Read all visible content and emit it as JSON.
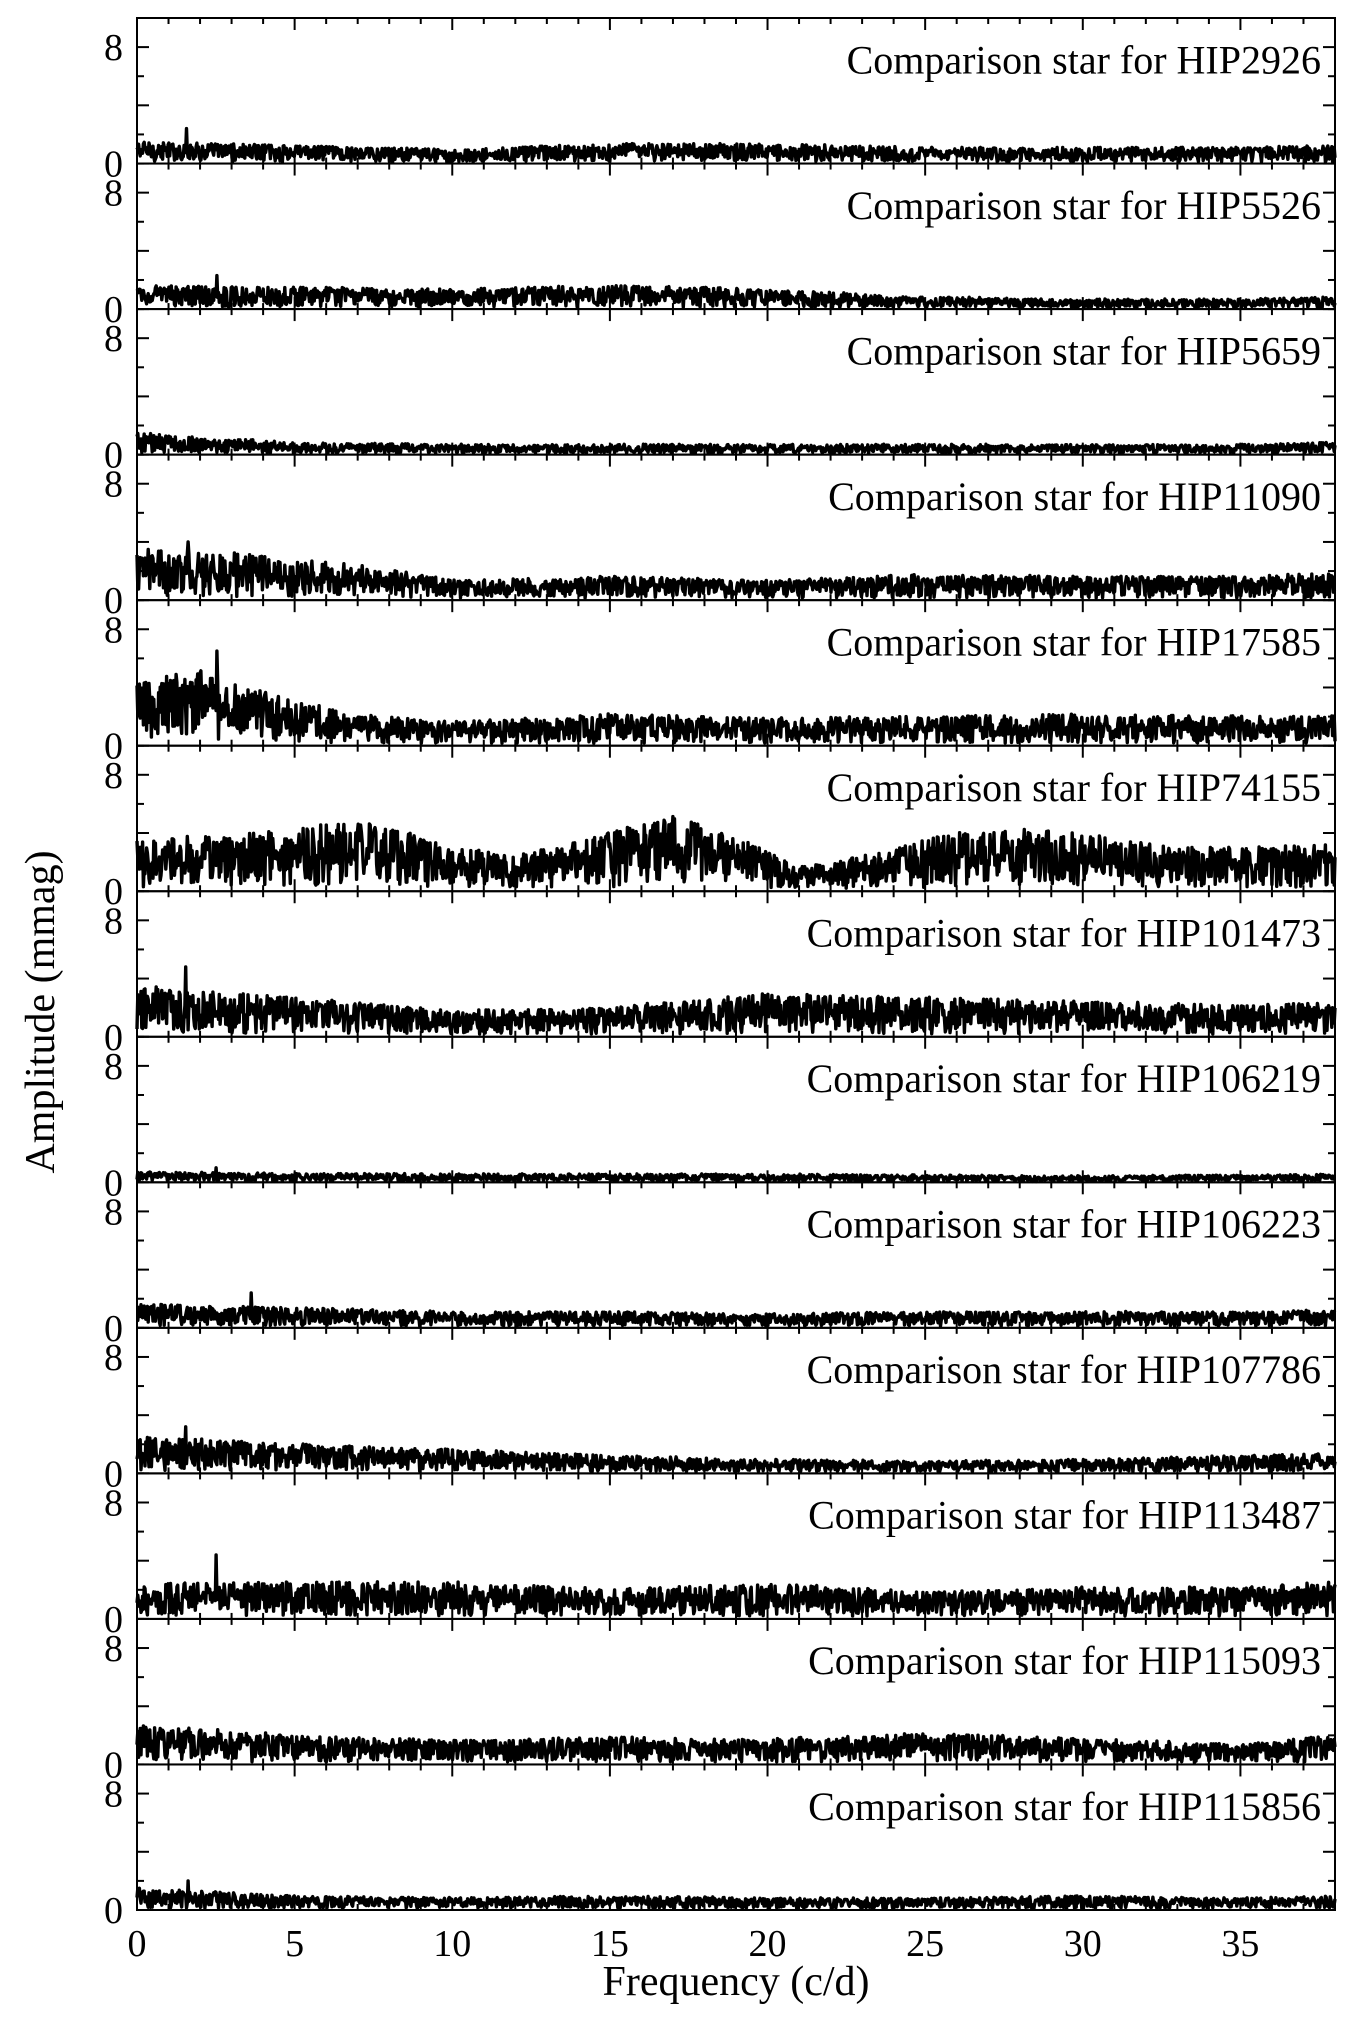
{
  "chart_data": {
    "type": "line",
    "xlabel": "Frequency (c/d)",
    "ylabel": "Amplitude (mmag)",
    "xlim": [
      0,
      38
    ],
    "ylim": [
      0,
      10
    ],
    "xticks": [
      0,
      5,
      10,
      15,
      20,
      25,
      30,
      35
    ],
    "yticks": [
      0,
      8
    ],
    "grid": false,
    "panels": [
      {
        "title": "Comparison star for HIP2926",
        "mean": 0.9,
        "peak": 2.4,
        "profile": [
          [
            0,
            1.1
          ],
          [
            5,
            0.9
          ],
          [
            10,
            0.7
          ],
          [
            15,
            1.0
          ],
          [
            20,
            1.0
          ],
          [
            25,
            0.8
          ],
          [
            30,
            0.8
          ],
          [
            35,
            0.8
          ],
          [
            38,
            0.9
          ]
        ]
      },
      {
        "title": "Comparison star for HIP5526",
        "mean": 0.9,
        "peak": 2.3,
        "profile": [
          [
            0,
            1.2
          ],
          [
            5,
            1.1
          ],
          [
            10,
            1.0
          ],
          [
            15,
            1.2
          ],
          [
            20,
            1.0
          ],
          [
            25,
            0.6
          ],
          [
            30,
            0.5
          ],
          [
            35,
            0.5
          ],
          [
            38,
            0.6
          ]
        ]
      },
      {
        "title": "Comparison star for HIP5659",
        "mean": 0.6,
        "peak": 1.8,
        "profile": [
          [
            0,
            1.1
          ],
          [
            5,
            0.6
          ],
          [
            10,
            0.5
          ],
          [
            15,
            0.5
          ],
          [
            20,
            0.5
          ],
          [
            25,
            0.5
          ],
          [
            30,
            0.5
          ],
          [
            35,
            0.5
          ],
          [
            38,
            0.6
          ]
        ]
      },
      {
        "title": "Comparison star for HIP11090",
        "mean": 1.5,
        "peak": 4.0,
        "profile": [
          [
            0,
            2.6
          ],
          [
            3,
            2.4
          ],
          [
            7,
            1.8
          ],
          [
            10,
            1.0
          ],
          [
            15,
            1.2
          ],
          [
            20,
            1.0
          ],
          [
            25,
            1.3
          ],
          [
            30,
            1.2
          ],
          [
            35,
            1.2
          ],
          [
            38,
            1.4
          ]
        ]
      },
      {
        "title": "Comparison star for HIP17585",
        "mean": 2.0,
        "peak": 6.5,
        "profile": [
          [
            0,
            3.3
          ],
          [
            2,
            4.0
          ],
          [
            4,
            2.8
          ],
          [
            7,
            1.6
          ],
          [
            10,
            1.2
          ],
          [
            15,
            1.6
          ],
          [
            20,
            1.4
          ],
          [
            25,
            1.5
          ],
          [
            30,
            1.6
          ],
          [
            35,
            1.5
          ],
          [
            38,
            1.5
          ]
        ]
      },
      {
        "title": "Comparison star for HIP74155",
        "mean": 3.0,
        "peak": 6.5,
        "profile": [
          [
            0,
            2.6
          ],
          [
            4,
            3.0
          ],
          [
            7,
            3.6
          ],
          [
            10,
            2.4
          ],
          [
            12,
            1.8
          ],
          [
            15,
            3.0
          ],
          [
            17,
            3.8
          ],
          [
            19,
            2.8
          ],
          [
            21,
            1.2
          ],
          [
            23,
            1.8
          ],
          [
            26,
            3.0
          ],
          [
            29,
            3.2
          ],
          [
            32,
            2.4
          ],
          [
            35,
            2.2
          ],
          [
            38,
            2.4
          ]
        ]
      },
      {
        "title": "Comparison star for HIP101473",
        "mean": 2.0,
        "peak": 4.8,
        "profile": [
          [
            0,
            2.6
          ],
          [
            5,
            2.0
          ],
          [
            10,
            1.3
          ],
          [
            15,
            1.5
          ],
          [
            20,
            2.2
          ],
          [
            25,
            2.0
          ],
          [
            30,
            1.8
          ],
          [
            35,
            1.6
          ],
          [
            38,
            1.7
          ]
        ]
      },
      {
        "title": "Comparison star for HIP106219",
        "mean": 0.4,
        "peak": 1.0,
        "profile": [
          [
            0,
            0.5
          ],
          [
            10,
            0.4
          ],
          [
            20,
            0.4
          ],
          [
            30,
            0.3
          ],
          [
            38,
            0.4
          ]
        ]
      },
      {
        "title": "Comparison star for HIP106223",
        "mean": 0.9,
        "peak": 2.4,
        "profile": [
          [
            0,
            1.2
          ],
          [
            5,
            1.0
          ],
          [
            10,
            0.8
          ],
          [
            15,
            0.8
          ],
          [
            20,
            0.7
          ],
          [
            25,
            0.8
          ],
          [
            30,
            0.8
          ],
          [
            35,
            0.8
          ],
          [
            38,
            0.9
          ]
        ]
      },
      {
        "title": "Comparison star for HIP107786",
        "mean": 1.2,
        "peak": 3.2,
        "profile": [
          [
            0,
            1.9
          ],
          [
            5,
            1.5
          ],
          [
            10,
            1.2
          ],
          [
            15,
            0.9
          ],
          [
            20,
            0.7
          ],
          [
            25,
            0.6
          ],
          [
            30,
            0.7
          ],
          [
            35,
            0.9
          ],
          [
            38,
            1.0
          ]
        ]
      },
      {
        "title": "Comparison star for HIP113487",
        "mean": 1.8,
        "peak": 4.4,
        "profile": [
          [
            0,
            1.8
          ],
          [
            5,
            1.9
          ],
          [
            10,
            1.9
          ],
          [
            15,
            1.5
          ],
          [
            20,
            1.8
          ],
          [
            25,
            1.4
          ],
          [
            30,
            1.6
          ],
          [
            35,
            1.6
          ],
          [
            38,
            1.9
          ]
        ]
      },
      {
        "title": "Comparison star for HIP115093",
        "mean": 1.5,
        "peak": 3.3,
        "profile": [
          [
            0,
            2.0
          ],
          [
            5,
            1.5
          ],
          [
            10,
            1.2
          ],
          [
            15,
            1.4
          ],
          [
            20,
            1.3
          ],
          [
            25,
            1.6
          ],
          [
            30,
            1.3
          ],
          [
            35,
            1.0
          ],
          [
            38,
            1.5
          ]
        ]
      },
      {
        "title": "Comparison star for HIP115856",
        "mean": 0.7,
        "peak": 2.0,
        "profile": [
          [
            0,
            1.1
          ],
          [
            5,
            0.7
          ],
          [
            10,
            0.6
          ],
          [
            15,
            0.7
          ],
          [
            20,
            0.6
          ],
          [
            25,
            0.6
          ],
          [
            30,
            0.7
          ],
          [
            35,
            0.6
          ],
          [
            38,
            0.7
          ]
        ]
      }
    ]
  }
}
